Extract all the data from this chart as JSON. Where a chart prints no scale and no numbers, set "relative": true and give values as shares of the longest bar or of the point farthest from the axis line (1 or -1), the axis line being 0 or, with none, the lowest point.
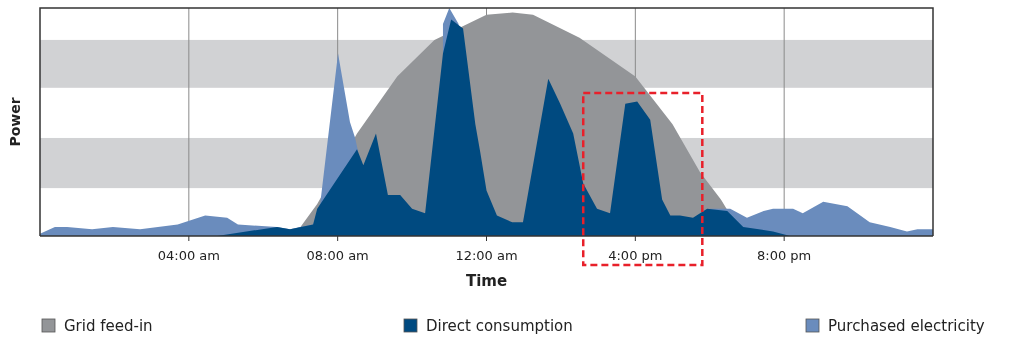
{
  "chart_data": {
    "type": "area",
    "relative": true,
    "xlabel": "Time",
    "ylabel": "Power",
    "xlim": [
      0,
      24
    ],
    "xticks": [
      {
        "value": 4,
        "label": "04:00 am"
      },
      {
        "value": 8,
        "label": "08:00 am"
      },
      {
        "value": 12,
        "label": "12:00 am"
      },
      {
        "value": 16,
        "label": "4:00 pm"
      },
      {
        "value": 20,
        "label": "8:00 pm"
      }
    ],
    "grid": "x",
    "legend": "bottom",
    "bands": [
      {
        "axis": "y",
        "from": 0.65,
        "to": 0.86,
        "color": "#d1d2d4"
      },
      {
        "axis": "y",
        "from": 0.21,
        "to": 0.43,
        "color": "#d1d2d4"
      }
    ],
    "series": [
      {
        "name": "Grid feed-in",
        "color": "#939598",
        "x": [
          6.3,
          7.0,
          7.45,
          8.52,
          9.6,
          10.6,
          12.0,
          12.7,
          13.25,
          14.5,
          16.0,
          17.0,
          17.74,
          18.3,
          18.9
        ],
        "values": [
          0,
          0.04,
          0.14,
          0.45,
          0.7,
          0.86,
          0.97,
          0.98,
          0.97,
          0.87,
          0.7,
          0.49,
          0.28,
          0.16,
          0
        ]
      },
      {
        "name": "Direct consumption",
        "color": "#004a80",
        "x": [
          4.76,
          6.37,
          6.72,
          7.34,
          7.45,
          8.52,
          8.69,
          9.03,
          9.35,
          9.68,
          10.0,
          10.35,
          10.83,
          11.05,
          11.37,
          11.7,
          11.83,
          12.0,
          12.28,
          12.69,
          12.98,
          13.66,
          13.98,
          14.33,
          14.6,
          14.97,
          15.32,
          15.73,
          16.05,
          16.4,
          16.72,
          16.94,
          17.2,
          17.55,
          17.93,
          18.47,
          18.9,
          19.7,
          20.16
        ],
        "values": [
          0,
          0.04,
          0.03,
          0.05,
          0.12,
          0.38,
          0.31,
          0.45,
          0.18,
          0.18,
          0.12,
          0.1,
          0.8,
          0.95,
          0.91,
          0.49,
          0.37,
          0.2,
          0.09,
          0.06,
          0.06,
          0.69,
          0.58,
          0.45,
          0.23,
          0.12,
          0.1,
          0.58,
          0.59,
          0.51,
          0.16,
          0.09,
          0.09,
          0.08,
          0.12,
          0.11,
          0.04,
          0.02,
          0
        ]
      },
      {
        "name": "Purchased electricity",
        "color": "#6a8cbd",
        "x": [
          0,
          0.4,
          0.73,
          1.4,
          1.96,
          2.69,
          3.7,
          4.44,
          5.03,
          5.32,
          6.37,
          6.72,
          7.0,
          7.34,
          7.53,
          8.01,
          8.33,
          8.47,
          8.55,
          9.0,
          10.83,
          11.0,
          11.25,
          11.5,
          18.0,
          18.55,
          19.0,
          19.45,
          19.7,
          20.24,
          20.5,
          21.05,
          21.7,
          22.3,
          22.85,
          23.3,
          23.58,
          24
        ],
        "values": [
          0.01,
          0.04,
          0.04,
          0.03,
          0.04,
          0.03,
          0.05,
          0.09,
          0.08,
          0.05,
          0.04,
          0.03,
          0.04,
          0.05,
          0.14,
          0.8,
          0.5,
          0.43,
          0.37,
          null,
          0.93,
          1.0,
          0.93,
          null,
          0.12,
          0.12,
          0.08,
          0.11,
          0.12,
          0.12,
          0.1,
          0.15,
          0.13,
          0.06,
          0.04,
          0.02,
          0.03,
          0.03
        ]
      }
    ]
  }
}
